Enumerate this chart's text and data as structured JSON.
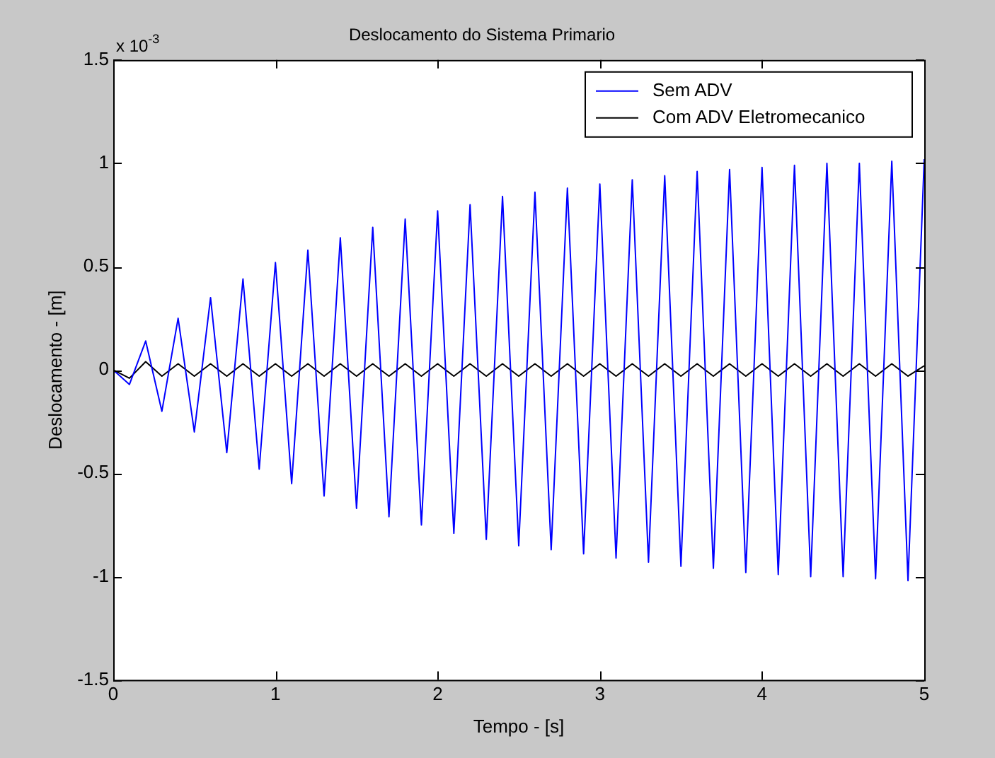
{
  "chart_data": {
    "type": "line",
    "title": "Deslocamento do Sistema Primario",
    "xlabel": "Tempo - [s]",
    "ylabel": "Deslocamento - [m]",
    "annotations": [
      "x 10$^{-3}$"
    ],
    "x": [
      0,
      0.1,
      0.2,
      0.3,
      0.4,
      0.5,
      0.6,
      0.7,
      0.8,
      0.9,
      1.0,
      1.1,
      1.2,
      1.3,
      1.4,
      1.5,
      1.6,
      1.7,
      1.8,
      1.9,
      2.0,
      2.1,
      2.2,
      2.3,
      2.4,
      2.5,
      2.6,
      2.7,
      2.8,
      2.9,
      3.0,
      3.1,
      3.2,
      3.3,
      3.4,
      3.5,
      3.6,
      3.7,
      3.8,
      3.9,
      4.0,
      4.1,
      4.2,
      4.3,
      4.4,
      4.5,
      4.6,
      4.7,
      4.8,
      4.9,
      5.0
    ],
    "series": [
      {
        "name": "Sem ADV",
        "color": "#0000ff",
        "values": [
          0,
          -0.07,
          0.14,
          -0.2,
          0.25,
          -0.3,
          0.35,
          -0.4,
          0.44,
          -0.48,
          0.52,
          -0.55,
          0.58,
          -0.61,
          0.64,
          -0.67,
          0.69,
          -0.71,
          0.73,
          -0.75,
          0.77,
          -0.79,
          0.8,
          -0.82,
          0.84,
          -0.85,
          0.86,
          -0.87,
          0.88,
          -0.89,
          0.9,
          -0.91,
          0.92,
          -0.93,
          0.94,
          -0.95,
          0.96,
          -0.96,
          0.97,
          -0.98,
          0.98,
          -0.99,
          0.99,
          -1.0,
          1.0,
          -1.0,
          1.0,
          -1.01,
          1.01,
          -1.02,
          1.02
        ]
      },
      {
        "name": "Com ADV Eletromecanico",
        "color": "#000000",
        "values": [
          0,
          -0.04,
          0.04,
          -0.03,
          0.03,
          -0.03,
          0.03,
          -0.03,
          0.03,
          -0.03,
          0.03,
          -0.03,
          0.03,
          -0.03,
          0.03,
          -0.03,
          0.03,
          -0.03,
          0.03,
          -0.03,
          0.03,
          -0.03,
          0.03,
          -0.03,
          0.03,
          -0.03,
          0.03,
          -0.03,
          0.03,
          -0.03,
          0.03,
          -0.03,
          0.03,
          -0.03,
          0.03,
          -0.03,
          0.03,
          -0.03,
          0.03,
          -0.03,
          0.03,
          -0.03,
          0.03,
          -0.03,
          0.03,
          -0.03,
          0.03,
          -0.03,
          0.03,
          -0.03,
          0.02
        ]
      }
    ],
    "xlim": [
      0,
      5
    ],
    "xticks": [
      0,
      1,
      2,
      3,
      4,
      5
    ],
    "ylim": [
      -1.5,
      1.5
    ],
    "yticks": [
      -1.5,
      -1,
      -0.5,
      0,
      0.5,
      1,
      1.5
    ],
    "grid": false,
    "legend": "top right",
    "marker": "none",
    "line_style": "solid"
  }
}
